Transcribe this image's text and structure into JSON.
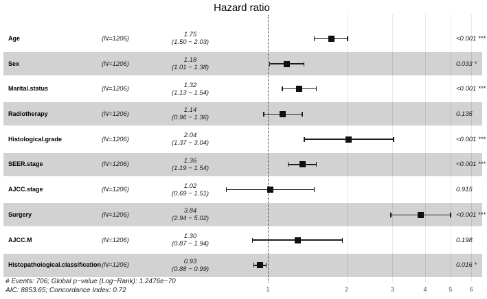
{
  "title": "Hazard ratio",
  "footer": {
    "line1": "# Events: 706; Global p−value (Log−Rank): 1.2476e−70",
    "line2": "AIC: 8853.65; Concordance Index: 0.72"
  },
  "colors": {
    "background": "#ffffff",
    "stripe_band": "#d2d2d2",
    "marker": "#101010",
    "reference_line": "#3a3a3a",
    "axis_tick_text": "#4d4d4d"
  },
  "chart_data": {
    "type": "forest",
    "title": "Hazard ratio",
    "x_scale": "log",
    "x_ticks": [
      1,
      2,
      3,
      4,
      5,
      6
    ],
    "x_range": [
      0.65,
      6.2
    ],
    "reference_value": 1,
    "marker_shape": "square",
    "grid": "vertical-major",
    "rows": [
      {
        "label": "Age",
        "n": "(N=1206)",
        "est": "1.75",
        "ci": "(1.50 − 2.03)",
        "p": "<0.001 ***",
        "hr": 1.75,
        "lo": 1.5,
        "hi": 2.03
      },
      {
        "label": "Sex",
        "n": "(N=1206)",
        "est": "1.18",
        "ci": "(1.01 − 1.38)",
        "p": "0.033 *",
        "hr": 1.18,
        "lo": 1.01,
        "hi": 1.38
      },
      {
        "label": "Marital.status",
        "n": "(N=1206)",
        "est": "1.32",
        "ci": "(1.13 − 1.54)",
        "p": "<0.001 ***",
        "hr": 1.32,
        "lo": 1.13,
        "hi": 1.54
      },
      {
        "label": "Radiotherapy",
        "n": "(N=1206)",
        "est": "1.14",
        "ci": "(0.96 − 1.36)",
        "p": "0.135",
        "hr": 1.14,
        "lo": 0.96,
        "hi": 1.36
      },
      {
        "label": "Histological.grade",
        "n": "(N=1206)",
        "est": "2.04",
        "ci": "(1.37 − 3.04)",
        "p": "<0.001 ***",
        "hr": 2.04,
        "lo": 1.37,
        "hi": 3.04
      },
      {
        "label": "SEER.stage",
        "n": "(N=1206)",
        "est": "1.36",
        "ci": "(1.19 − 1.54)",
        "p": "<0.001 ***",
        "hr": 1.36,
        "lo": 1.19,
        "hi": 1.54
      },
      {
        "label": "AJCC.stage",
        "n": "(N=1206)",
        "est": "1.02",
        "ci": "(0.69 − 1.51)",
        "p": "0.915",
        "hr": 1.02,
        "lo": 0.69,
        "hi": 1.51
      },
      {
        "label": "Surgery",
        "n": "(N=1206)",
        "est": "3.84",
        "ci": "(2.94 − 5.02)",
        "p": "<0.001 ***",
        "hr": 3.84,
        "lo": 2.94,
        "hi": 5.02
      },
      {
        "label": "AJCC.M",
        "n": "(N=1206)",
        "est": "1.30",
        "ci": "(0.87 − 1.94)",
        "p": "0.198",
        "hr": 1.3,
        "lo": 0.87,
        "hi": 1.94
      },
      {
        "label": "Histopathological.classification",
        "n": "(N=1206)",
        "est": "0.93",
        "ci": "(0.88 − 0.99)",
        "p": "0.016 *",
        "hr": 0.93,
        "lo": 0.88,
        "hi": 0.99
      }
    ],
    "annotations": [
      "# Events: 706; Global p−value (Log−Rank): 1.2476e−70",
      "AIC: 8853.65; Concordance Index: 0.72"
    ]
  }
}
